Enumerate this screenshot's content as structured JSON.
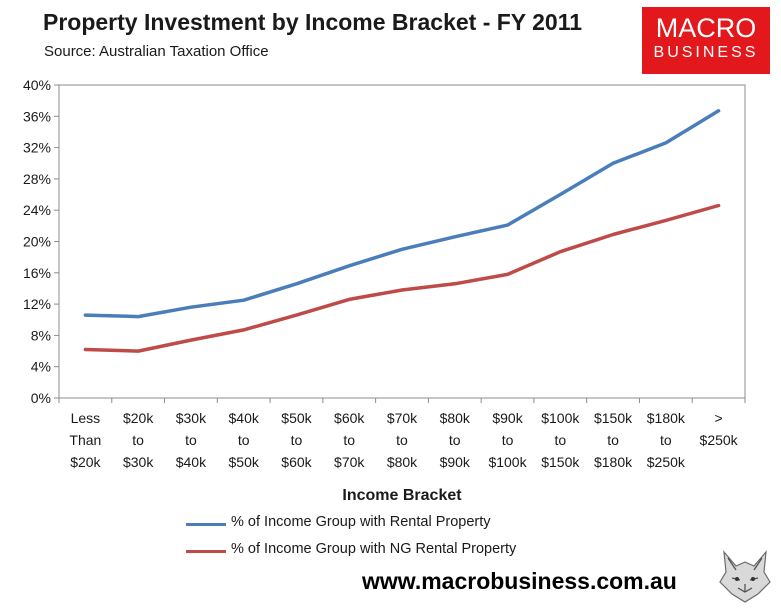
{
  "header": {
    "title": "Property Investment by Income Bracket - FY 2011",
    "subtitle": "Source: Australian Taxation Office"
  },
  "logo": {
    "line1": "MACRO",
    "line2": "BUSINESS",
    "color": "#e3181c"
  },
  "footer": {
    "website": "www.macrobusiness.com.au"
  },
  "chart_data": {
    "type": "line",
    "title": "Property Investment by Income Bracket - FY 2011",
    "subtitle": "Source: Australian Taxation Office",
    "xlabel": "Income Bracket",
    "ylabel": "",
    "ylim": [
      0,
      40
    ],
    "yticks": [
      "0%",
      "4%",
      "8%",
      "12%",
      "16%",
      "20%",
      "24%",
      "28%",
      "32%",
      "36%",
      "40%"
    ],
    "ytick_values": [
      0,
      4,
      8,
      12,
      16,
      20,
      24,
      28,
      32,
      36,
      40
    ],
    "categories": [
      [
        "Less",
        "Than",
        "$20k"
      ],
      [
        "$20k",
        "to",
        "$30k"
      ],
      [
        "$30k",
        "to",
        "$40k"
      ],
      [
        "$40k",
        "to",
        "$50k"
      ],
      [
        "$50k",
        "to",
        "$60k"
      ],
      [
        "$60k",
        "to",
        "$70k"
      ],
      [
        "$70k",
        "to",
        "$80k"
      ],
      [
        "$80k",
        "to",
        "$90k"
      ],
      [
        "$90k",
        "to",
        "$100k"
      ],
      [
        "$100k",
        "to",
        "$150k"
      ],
      [
        "$150k",
        "to",
        "$180k"
      ],
      [
        "$180k",
        "to",
        "$250k"
      ],
      [
        ">",
        "$250k"
      ]
    ],
    "series": [
      {
        "name": "% of Income Group with Rental Property",
        "color": "#4a7ebb",
        "values": [
          10.6,
          10.4,
          11.6,
          12.5,
          14.6,
          16.9,
          19.0,
          20.6,
          22.1,
          26.0,
          30.0,
          32.6,
          36.7
        ]
      },
      {
        "name": "% of Income Group with NG Rental Property",
        "color": "#be4b48",
        "values": [
          6.2,
          6.0,
          7.4,
          8.7,
          10.6,
          12.6,
          13.8,
          14.6,
          15.8,
          18.7,
          20.9,
          22.7,
          24.6
        ]
      }
    ],
    "grid": false,
    "legend_position": "bottom"
  }
}
